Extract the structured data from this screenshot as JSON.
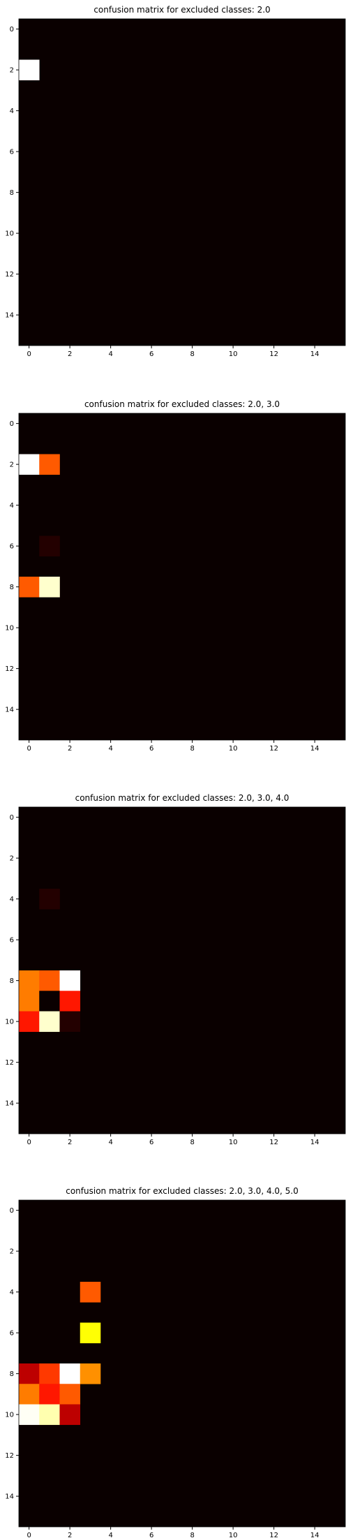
{
  "colormap": "hot",
  "background": "#ffffff",
  "chart_data": [
    {
      "type": "heatmap",
      "title": "confusion matrix for excluded classes: 2.0",
      "rows": 16,
      "cols": 16,
      "xlim": [
        -0.5,
        15.5
      ],
      "ylim": [
        15.5,
        -0.5
      ],
      "xticks": [
        0,
        2,
        4,
        6,
        8,
        10,
        12,
        14
      ],
      "yticks": [
        0,
        2,
        4,
        6,
        8,
        10,
        12,
        14
      ],
      "vmax": 1,
      "cells": [
        {
          "row": 2,
          "col": 0,
          "value": 1.0
        }
      ]
    },
    {
      "type": "heatmap",
      "title": "confusion matrix for excluded classes: 2.0, 3.0",
      "rows": 16,
      "cols": 16,
      "xlim": [
        -0.5,
        15.5
      ],
      "ylim": [
        15.5,
        -0.5
      ],
      "xticks": [
        0,
        2,
        4,
        6,
        8,
        10,
        12,
        14
      ],
      "yticks": [
        0,
        2,
        4,
        6,
        8,
        10,
        12,
        14
      ],
      "vmax": 1,
      "cells": [
        {
          "row": 2,
          "col": 0,
          "value": 1.0
        },
        {
          "row": 2,
          "col": 1,
          "value": 0.5
        },
        {
          "row": 6,
          "col": 1,
          "value": 0.05
        },
        {
          "row": 8,
          "col": 0,
          "value": 0.5
        },
        {
          "row": 8,
          "col": 1,
          "value": 0.95
        }
      ]
    },
    {
      "type": "heatmap",
      "title": "confusion matrix for excluded classes: 2.0, 3.0, 4.0",
      "rows": 16,
      "cols": 16,
      "xlim": [
        -0.5,
        15.5
      ],
      "ylim": [
        15.5,
        -0.5
      ],
      "xticks": [
        0,
        2,
        4,
        6,
        8,
        10,
        12,
        14
      ],
      "yticks": [
        0,
        2,
        4,
        6,
        8,
        10,
        12,
        14
      ],
      "vmax": 1,
      "cells": [
        {
          "row": 4,
          "col": 1,
          "value": 0.05
        },
        {
          "row": 8,
          "col": 0,
          "value": 0.55
        },
        {
          "row": 8,
          "col": 1,
          "value": 0.5
        },
        {
          "row": 8,
          "col": 2,
          "value": 1.0
        },
        {
          "row": 9,
          "col": 0,
          "value": 0.55
        },
        {
          "row": 9,
          "col": 1,
          "value": 0.0
        },
        {
          "row": 9,
          "col": 2,
          "value": 0.4
        },
        {
          "row": 10,
          "col": 0,
          "value": 0.4
        },
        {
          "row": 10,
          "col": 1,
          "value": 0.95
        },
        {
          "row": 10,
          "col": 2,
          "value": 0.05
        }
      ]
    },
    {
      "type": "heatmap",
      "title": "confusion matrix for excluded classes: 2.0, 3.0, 4.0, 5.0",
      "rows": 16,
      "cols": 16,
      "xlim": [
        -0.5,
        15.5
      ],
      "ylim": [
        15.5,
        -0.5
      ],
      "xticks": [
        0,
        2,
        4,
        6,
        8,
        10,
        12,
        14
      ],
      "yticks": [
        0,
        2,
        4,
        6,
        8,
        10,
        12,
        14
      ],
      "vmax": 1,
      "cells": [
        {
          "row": 4,
          "col": 3,
          "value": 0.5
        },
        {
          "row": 6,
          "col": 3,
          "value": 0.75
        },
        {
          "row": 8,
          "col": 0,
          "value": 0.27
        },
        {
          "row": 8,
          "col": 1,
          "value": 0.45
        },
        {
          "row": 8,
          "col": 2,
          "value": 1.0
        },
        {
          "row": 8,
          "col": 3,
          "value": 0.58
        },
        {
          "row": 9,
          "col": 0,
          "value": 0.55
        },
        {
          "row": 9,
          "col": 1,
          "value": 0.4
        },
        {
          "row": 9,
          "col": 2,
          "value": 0.5
        },
        {
          "row": 10,
          "col": 0,
          "value": 0.99
        },
        {
          "row": 10,
          "col": 1,
          "value": 0.92
        },
        {
          "row": 10,
          "col": 2,
          "value": 0.27
        }
      ]
    }
  ]
}
